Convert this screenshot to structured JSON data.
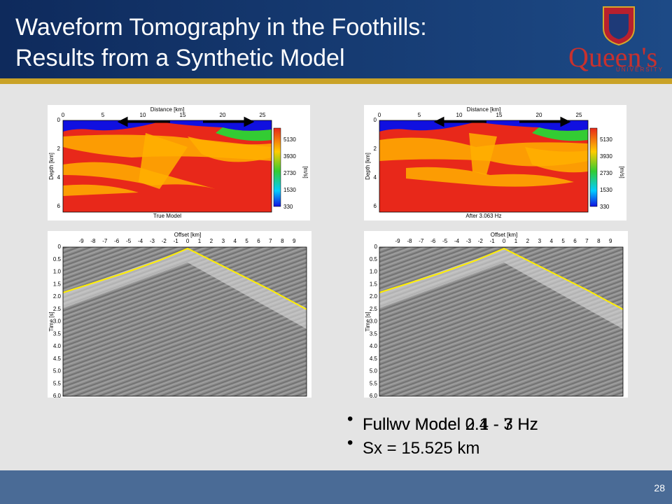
{
  "header": {
    "title_lines": [
      "Waveform Tomography in the Foothills:",
      "Results from a Synthetic Model"
    ],
    "logo": {
      "name": "Queen's",
      "subtitle": "UNIVERSITY"
    }
  },
  "panels": [
    {
      "kind": "model",
      "x_axis_label": "Distance [km]",
      "x_ticks": [
        "0",
        "5",
        "10",
        "15",
        "20",
        "25"
      ],
      "y_axis_label": "Depth [km]",
      "y_ticks": [
        "0",
        "2",
        "4",
        "6"
      ],
      "colorbar_ticks": [
        "5130",
        "3930",
        "2730",
        "1530",
        "330"
      ],
      "colorbar_label": "[m/s]",
      "caption": "True Model"
    },
    {
      "kind": "model",
      "x_axis_label": "Distance [km]",
      "x_ticks": [
        "0",
        "5",
        "10",
        "15",
        "20",
        "25"
      ],
      "y_axis_label": "Depth [km]",
      "y_ticks": [
        "0",
        "2",
        "4",
        "6"
      ],
      "colorbar_ticks": [
        "5130",
        "3930",
        "2730",
        "1530",
        "330"
      ],
      "colorbar_label": "[m/s]",
      "caption": "After 3.063 Hz"
    },
    {
      "kind": "seismic",
      "x_axis_label": "Offset [km]",
      "x_ticks": [
        "-9",
        "-8",
        "-7",
        "-6",
        "-5",
        "-4",
        "-3",
        "-2",
        "-1",
        "0",
        "1",
        "2",
        "3",
        "4",
        "5",
        "6",
        "7",
        "8",
        "9"
      ],
      "y_axis_label": "Time [s]",
      "y_ticks": [
        "0",
        "0.5",
        "1.0",
        "1.5",
        "2.0",
        "2.5",
        "3.0",
        "3.5",
        "4.0",
        "4.5",
        "5.0",
        "5.5",
        "6.0"
      ]
    },
    {
      "kind": "seismic",
      "x_axis_label": "Offset [km]",
      "x_ticks": [
        "-9",
        "-8",
        "-7",
        "-6",
        "-5",
        "-4",
        "-3",
        "-2",
        "-1",
        "0",
        "1",
        "2",
        "3",
        "4",
        "5",
        "6",
        "7",
        "8",
        "9"
      ],
      "y_axis_label": "Time [s]",
      "y_ticks": [
        "0",
        "0.5",
        "1.0",
        "1.5",
        "2.0",
        "2.5",
        "3.0",
        "3.5",
        "4.0",
        "4.5",
        "5.0",
        "5.5",
        "6.0"
      ]
    }
  ],
  "bullets": [
    "Fullwv Model 0.4 - 7 Hz",
    "Fullwv Model 2.1 - 3 Hz",
    "Sx = 15.525 km"
  ],
  "page_number": "28"
}
